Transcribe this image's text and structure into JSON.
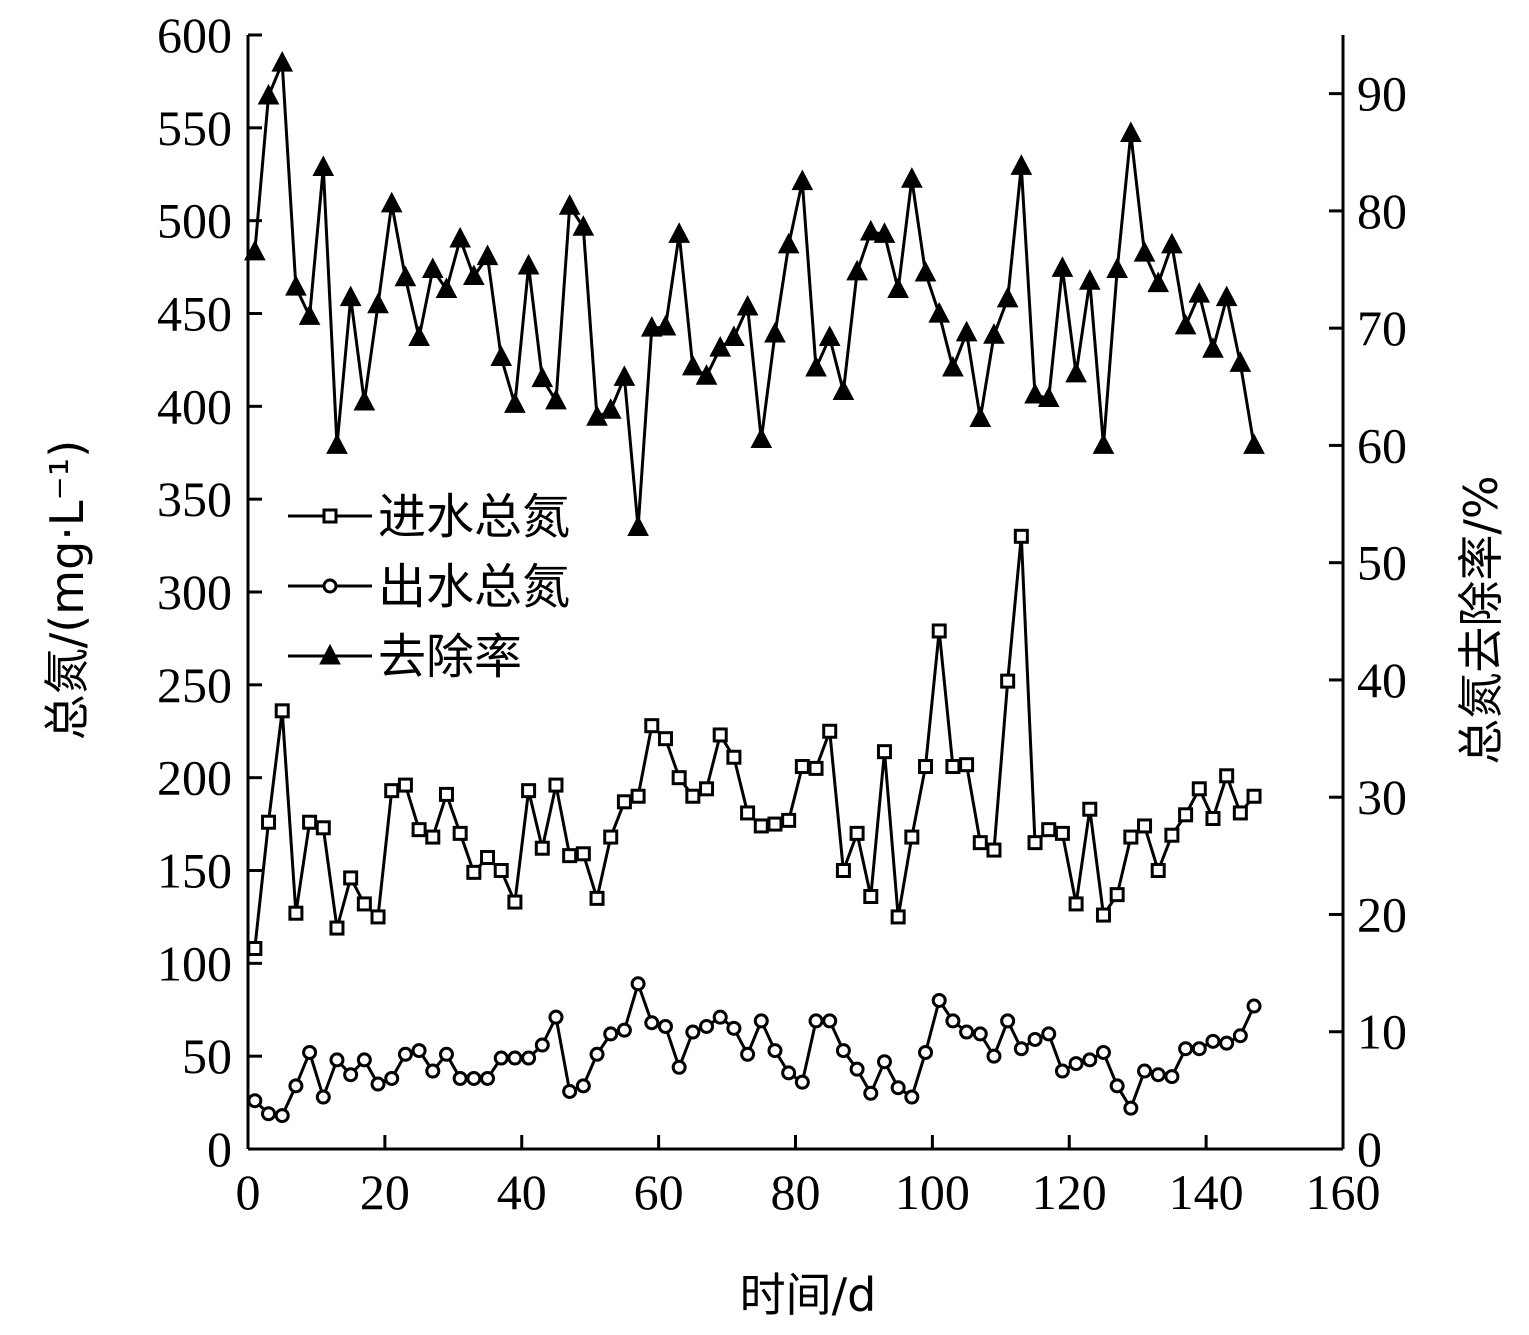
{
  "chart_data": {
    "type": "line",
    "title": "",
    "xlabel": "时间/d",
    "ylabel_left": "总氮/(mg·L⁻¹)",
    "ylabel_right": "总氮去除率/%",
    "xlim": [
      0,
      160
    ],
    "ylim_left": [
      0,
      600
    ],
    "ylim_right": [
      0,
      95
    ],
    "x_ticks": [
      0,
      20,
      40,
      60,
      80,
      100,
      120,
      140,
      160
    ],
    "y_left_ticks": [
      0,
      50,
      100,
      150,
      200,
      250,
      300,
      350,
      400,
      450,
      500,
      550,
      600
    ],
    "y_right_ticks": [
      0,
      10,
      20,
      30,
      40,
      50,
      60,
      70,
      80,
      90
    ],
    "grid": false,
    "legend_position": "center-left",
    "x": [
      1,
      3,
      5,
      7,
      9,
      11,
      13,
      15,
      17,
      19,
      21,
      23,
      25,
      27,
      29,
      31,
      33,
      35,
      37,
      39,
      41,
      43,
      45,
      47,
      49,
      51,
      53,
      55,
      57,
      59,
      61,
      63,
      65,
      67,
      69,
      71,
      73,
      75,
      77,
      79,
      81,
      83,
      85,
      87,
      89,
      91,
      93,
      95,
      97,
      99,
      101,
      103,
      105,
      107,
      109,
      111,
      113,
      115,
      117,
      119,
      121,
      123,
      125,
      127,
      129,
      131,
      133,
      135,
      137,
      139,
      141,
      143,
      145,
      147
    ],
    "series": [
      {
        "name": "进水总氮",
        "axis": "left",
        "marker": "square",
        "values": [
          108,
          176,
          236,
          127,
          176,
          173,
          119,
          146,
          132,
          125,
          193,
          196,
          172,
          168,
          191,
          170,
          149,
          157,
          150,
          133,
          193,
          162,
          196,
          158,
          159,
          135,
          168,
          187,
          190,
          228,
          221,
          200,
          190,
          194,
          223,
          211,
          181,
          174,
          175,
          177,
          206,
          205,
          225,
          150,
          170,
          136,
          214,
          125,
          168,
          206,
          279,
          206,
          207,
          165,
          161,
          252,
          330,
          165,
          172,
          170,
          132,
          183,
          126,
          137,
          168,
          174,
          150,
          169,
          180,
          194,
          178,
          201,
          181,
          190
        ]
      },
      {
        "name": "出水总氮",
        "axis": "left",
        "marker": "circle",
        "values": [
          26,
          19,
          18,
          34,
          52,
          28,
          48,
          40,
          48,
          35,
          38,
          51,
          53,
          42,
          51,
          38,
          38,
          38,
          49,
          49,
          49,
          56,
          71,
          31,
          34,
          51,
          62,
          64,
          89,
          68,
          66,
          44,
          63,
          66,
          71,
          65,
          51,
          69,
          53,
          41,
          36,
          69,
          69,
          53,
          43,
          30,
          47,
          33,
          28,
          52,
          80,
          69,
          63,
          62,
          50,
          69,
          54,
          59,
          62,
          42,
          46,
          48,
          52,
          34,
          22,
          42,
          40,
          39,
          54,
          54,
          58,
          57,
          61,
          77
        ]
      },
      {
        "name": "去除率",
        "axis": "right",
        "marker": "triangle",
        "values": [
          76.5,
          89.8,
          92.6,
          73.5,
          71.0,
          83.7,
          60.0,
          72.6,
          63.7,
          72.0,
          80.6,
          74.3,
          69.2,
          75.0,
          73.3,
          77.6,
          74.4,
          76.1,
          67.5,
          63.5,
          75.3,
          65.7,
          63.8,
          80.4,
          78.6,
          62.4,
          63.0,
          65.8,
          53.0,
          70.0,
          70.1,
          78.0,
          66.7,
          65.9,
          68.3,
          69.2,
          71.8,
          60.5,
          69.5,
          77.1,
          82.5,
          66.6,
          69.2,
          64.6,
          74.8,
          78.2,
          78.0,
          73.3,
          82.7,
          74.7,
          71.2,
          66.6,
          69.6,
          62.3,
          69.4,
          72.5,
          83.8,
          64.3,
          64.0,
          75.1,
          66.1,
          74.0,
          60.0,
          75.0,
          86.6,
          76.4,
          73.8,
          77.1,
          70.2,
          72.9,
          68.2,
          72.6,
          67.0,
          60.0
        ]
      }
    ]
  }
}
